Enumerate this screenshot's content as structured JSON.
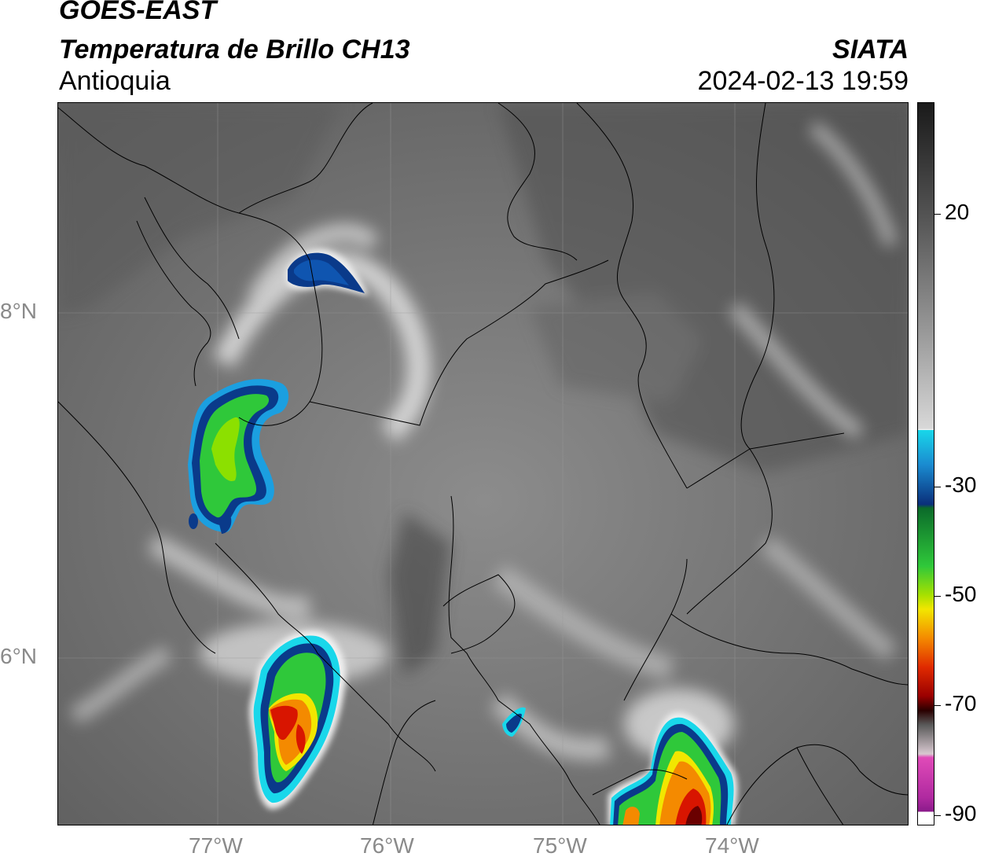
{
  "header": {
    "satellite": "GOES-EAST",
    "product": "Temperatura de Brillo CH13",
    "region": "Antioquia",
    "organization": "SIATA",
    "datetime": "2024-02-13 19:59"
  },
  "map": {
    "lat_ticks": [
      "8°N",
      "6°N"
    ],
    "lon_ticks": [
      "77°W",
      "76°W",
      "75°W",
      "74°W"
    ],
    "graticule": true
  },
  "colorbar": {
    "tick_labels": [
      "20",
      "-30",
      "-50",
      "-70",
      "-90"
    ],
    "colors": {
      "warm_gray_dark": "#2a2a2a",
      "warm_gray_light": "#f4f4f4",
      "cyan": "#19d7ea",
      "blue": "#0a3a8a",
      "green": "#2fc83a",
      "yellow": "#f2e600",
      "orange": "#f48a00",
      "red": "#d81500",
      "dark_red": "#6a0000",
      "magenta": "#e04ab8",
      "purple": "#8a1a8a"
    }
  }
}
